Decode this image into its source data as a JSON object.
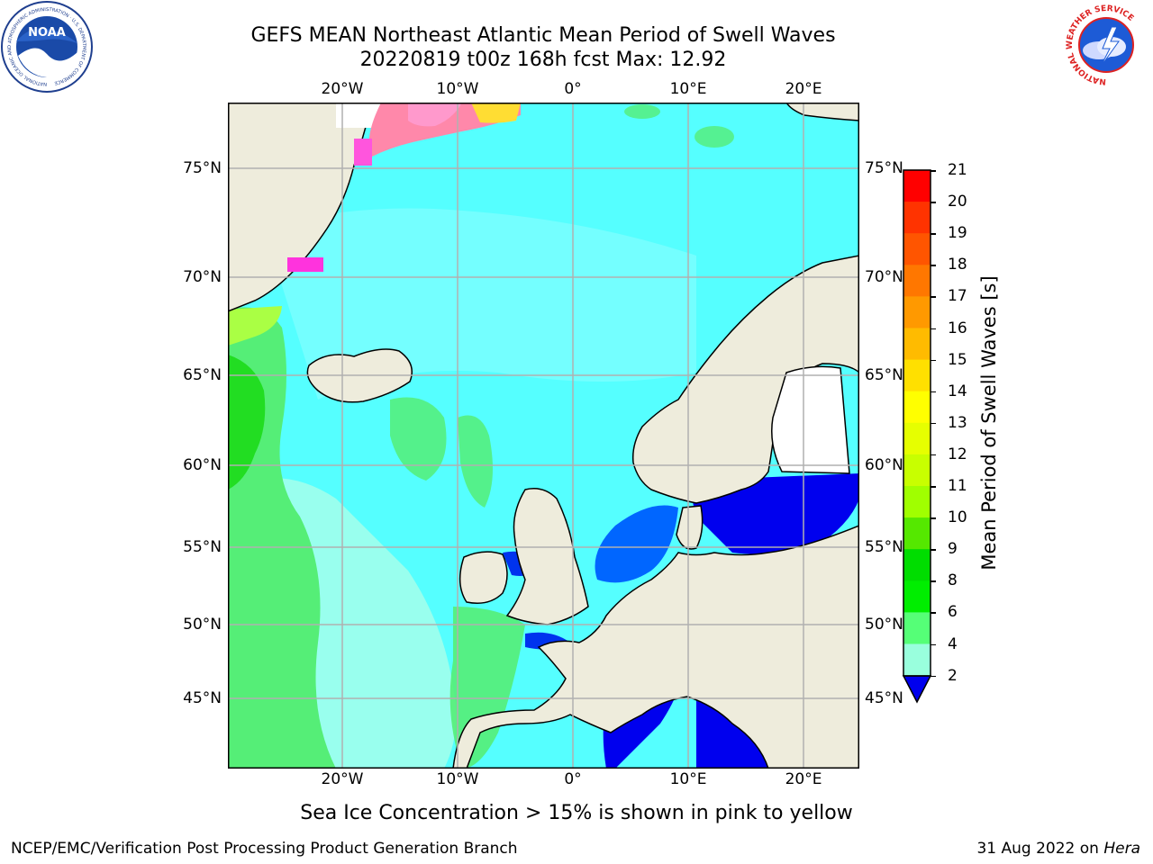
{
  "title": {
    "line1": "GEFS MEAN Northeast Atlantic Mean Period of Swell Waves",
    "line2": "20220819 t00z 168h fcst   Max: 12.92"
  },
  "map": {
    "lon_labels": [
      "20°W",
      "10°W",
      "0°",
      "10°E",
      "20°E"
    ],
    "lat_labels": [
      "75°N",
      "70°N",
      "65°N",
      "60°N",
      "55°N",
      "50°N",
      "45°N"
    ],
    "land_color": "#eeecdc",
    "grid_color": "#b0b0b0"
  },
  "colorbar": {
    "title": "Mean Period of Swell Waves [s]",
    "ticks": [
      "21",
      "20",
      "19",
      "18",
      "17",
      "16",
      "15",
      "14",
      "13",
      "12",
      "11",
      "10",
      "9",
      "8",
      "6",
      "4",
      "2"
    ],
    "colors": [
      "#ff0000",
      "#ff3300",
      "#ff5500",
      "#ff7700",
      "#ff9900",
      "#ffbb00",
      "#ffe000",
      "#ffff00",
      "#e6ff00",
      "#c8ff00",
      "#a0ff00",
      "#55e800",
      "#00dd00",
      "#00ee00",
      "#55ff77",
      "#99ffdd",
      "#66ffff",
      "#00ffff",
      "#00e0ff",
      "#0066ff"
    ]
  },
  "note": "Sea Ice Concentration > 15% is shown in pink to yellow",
  "footer": {
    "left": "NCEP/EMC/Verification Post Processing Product Generation Branch",
    "right_date": "31 Aug 2022 on ",
    "right_host": "Hera"
  },
  "logos": {
    "noaa": "NOAA",
    "noaa_ring": "NATIONAL OCEANIC AND ATMOSPHERIC ADMINISTRATION · U.S. DEPARTMENT OF COMMERCE",
    "nws_ring": "NATIONAL WEATHER SERVICE"
  }
}
